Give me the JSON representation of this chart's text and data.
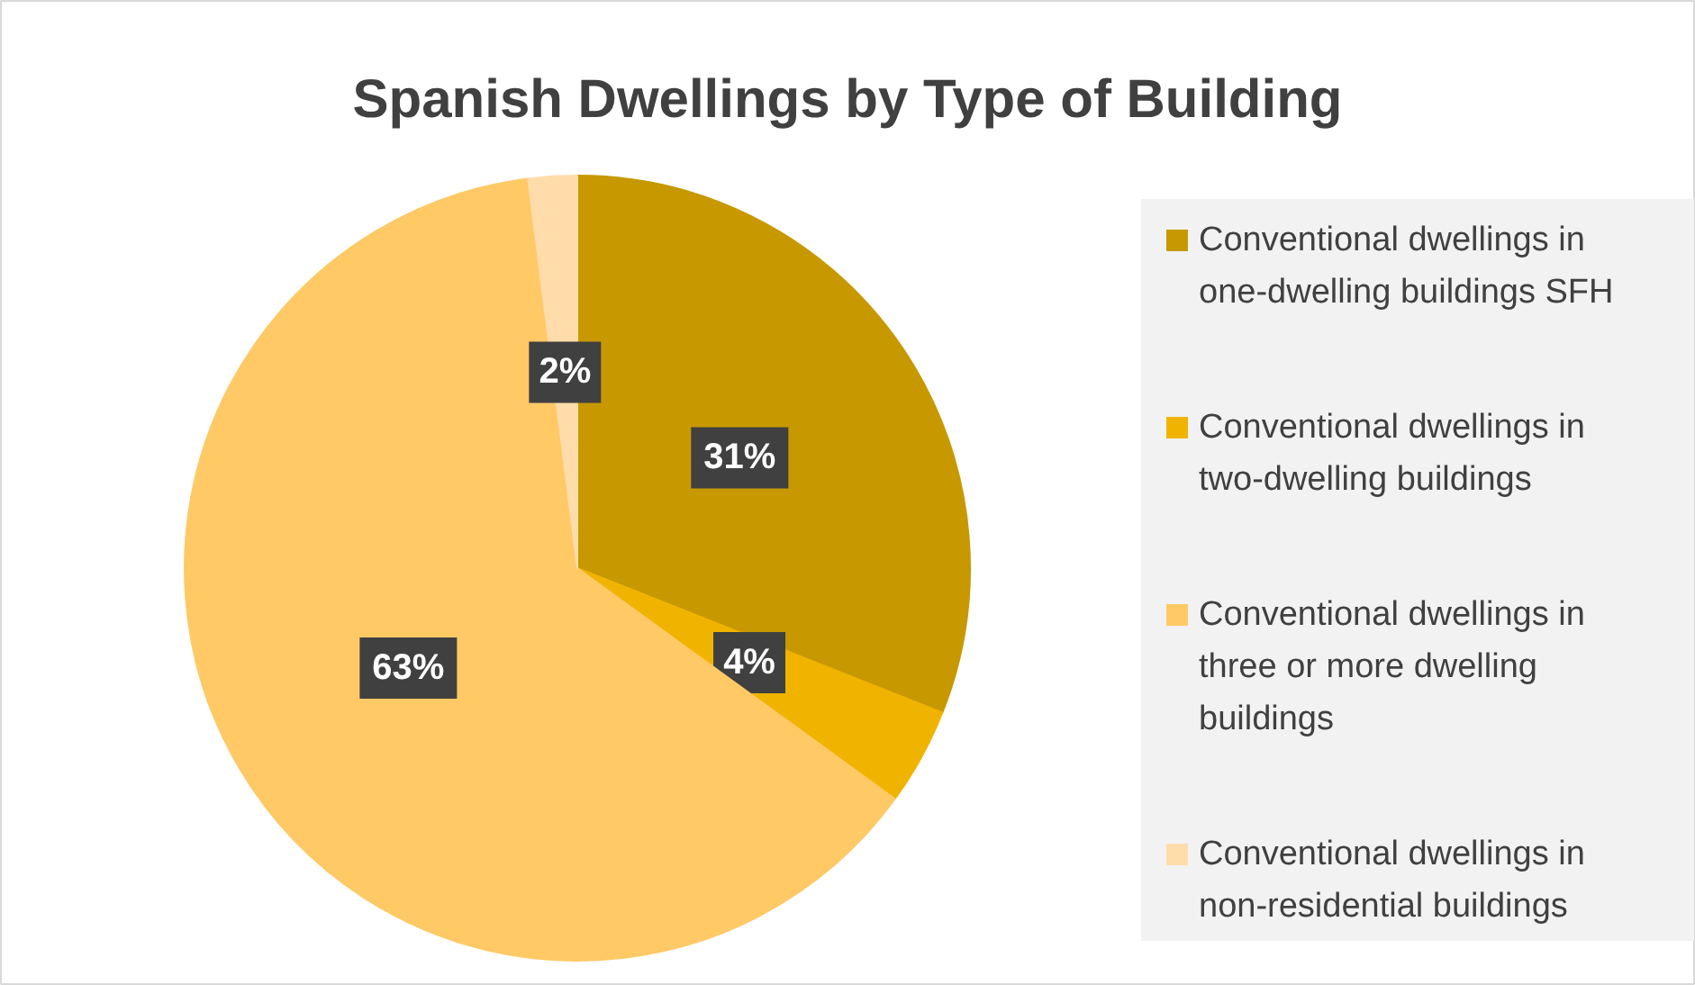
{
  "chart_data": {
    "type": "pie",
    "title": "Spanish Dwellings by Type of Building",
    "categories": [
      "Conventional dwellings in one-dwelling buildings SFH",
      "Conventional dwellings in two-dwelling buildings",
      "Conventional dwellings in three or more dwelling buildings",
      "Conventional dwellings in non-residential buildings"
    ],
    "values": [
      31,
      4,
      63,
      2
    ],
    "value_labels": [
      "31%",
      "4%",
      "63%",
      "2%"
    ],
    "colors": [
      "#c89800",
      "#f0b400",
      "#ffc966",
      "#ffdcaa"
    ],
    "legend": "right"
  }
}
